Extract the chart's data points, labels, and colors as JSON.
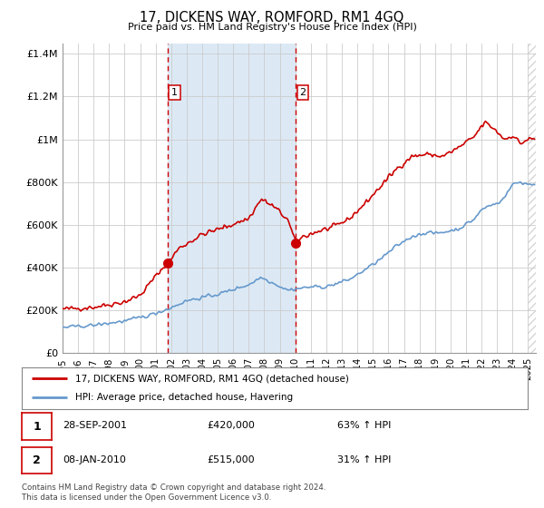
{
  "title": "17, DICKENS WAY, ROMFORD, RM1 4GQ",
  "subtitle": "Price paid vs. HM Land Registry's House Price Index (HPI)",
  "ylabel_ticks": [
    "£0",
    "£200K",
    "£400K",
    "£600K",
    "£800K",
    "£1M",
    "£1.2M",
    "£1.4M"
  ],
  "ytick_values": [
    0,
    200000,
    400000,
    600000,
    800000,
    1000000,
    1200000,
    1400000
  ],
  "ylim": [
    0,
    1450000
  ],
  "xlim_start": 1995.0,
  "xlim_end": 2025.5,
  "marker1_x": 2001.75,
  "marker1_y": 420000,
  "marker2_x": 2010.03,
  "marker2_y": 515000,
  "marker1_label": "1",
  "marker2_label": "2",
  "marker1_date": "28-SEP-2001",
  "marker1_price": "£420,000",
  "marker1_hpi": "63% ↑ HPI",
  "marker2_date": "08-JAN-2010",
  "marker2_price": "£515,000",
  "marker2_hpi": "31% ↑ HPI",
  "legend_line1": "17, DICKENS WAY, ROMFORD, RM1 4GQ (detached house)",
  "legend_line2": "HPI: Average price, detached house, Havering",
  "footer": "Contains HM Land Registry data © Crown copyright and database right 2024.\nThis data is licensed under the Open Government Licence v3.0.",
  "red_color": "#cc0000",
  "blue_color": "#6699cc",
  "shade_color": "#dce9f5",
  "hatch_color": "#cccccc",
  "grid_color": "#cccccc",
  "plot_bg": "#ffffff",
  "future_cutoff": 2025.0
}
